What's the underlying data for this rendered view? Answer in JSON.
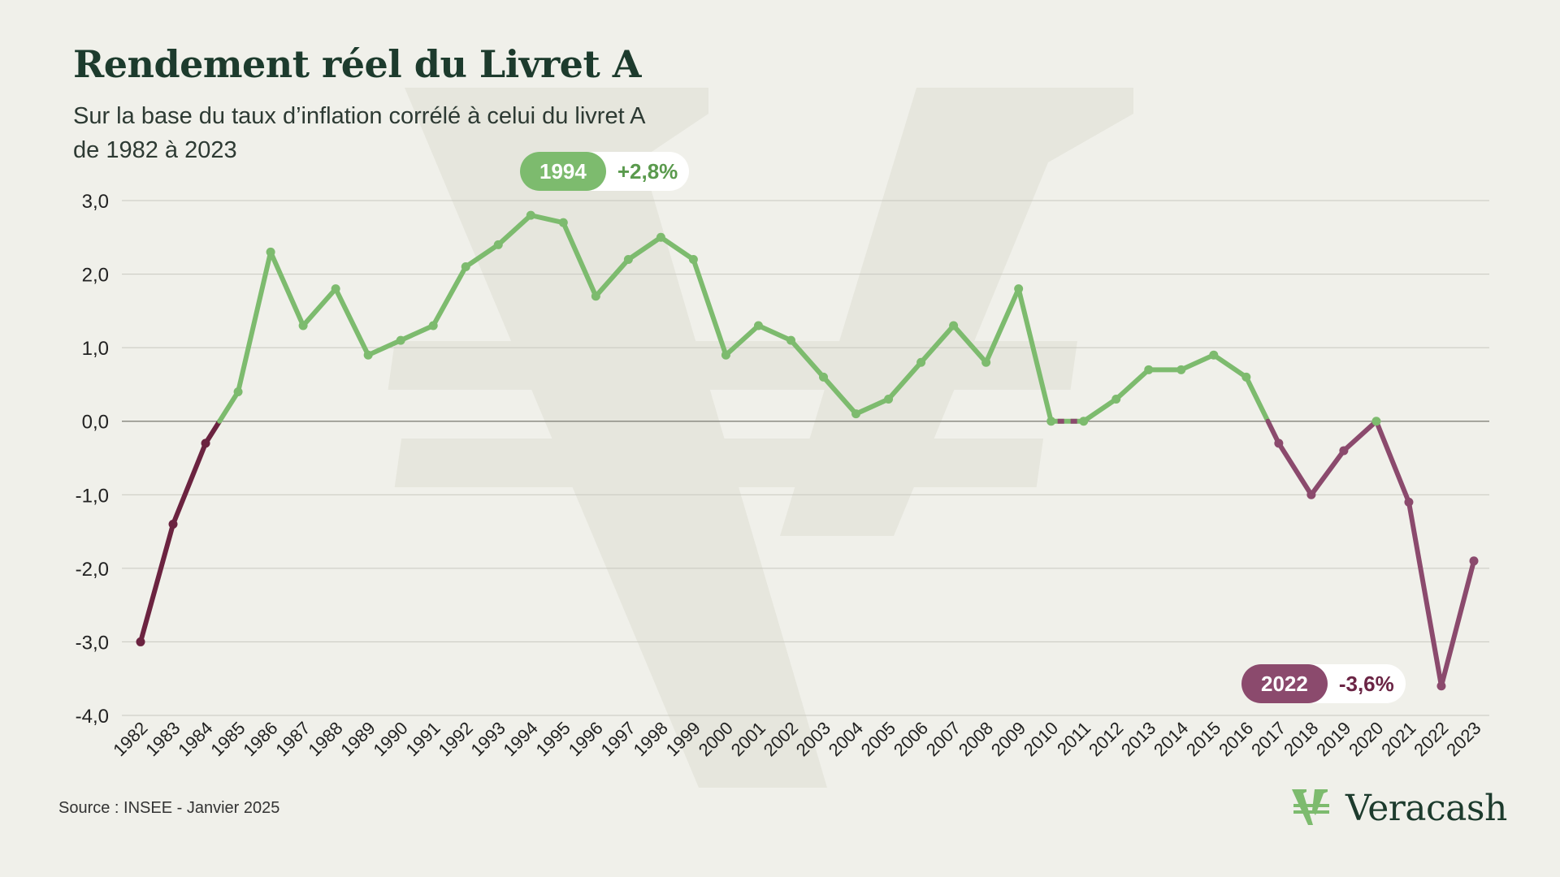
{
  "title": "Rendement réel du Livret A",
  "subtitle_line1": "Sur la base du taux d’inflation corrélé à celui du livret A",
  "subtitle_line2": "de 1982 à 2023",
  "source": "Source : INSEE - Janvier 2025",
  "brand": "Veracash",
  "callouts": {
    "max": {
      "year": "1994",
      "value": "+2,8%"
    },
    "min": {
      "year": "2022",
      "value": "-3,6%"
    }
  },
  "colors": {
    "positive": "#7dbb6e",
    "negative_early": "#6b2340",
    "negative_late": "#8b4a6d",
    "grid": "#c8c8c0",
    "background": "#f0f0ea"
  },
  "chart_data": {
    "type": "line",
    "title": "Rendement réel du Livret A",
    "ylim": [
      -4,
      3
    ],
    "yticks": [
      "3,0",
      "2,0",
      "1,0",
      "0,0",
      "-1,0",
      "-2,0",
      "-3,0",
      "-4,0"
    ],
    "grid": true,
    "x": [
      "1982",
      "1983",
      "1984",
      "1985",
      "1986",
      "1987",
      "1988",
      "1989",
      "1990",
      "1991",
      "1992",
      "1993",
      "1994",
      "1995",
      "1996",
      "1997",
      "1998",
      "1999",
      "2000",
      "2001",
      "2002",
      "2003",
      "2004",
      "2005",
      "2006",
      "2007",
      "2008",
      "2009",
      "2010",
      "2011",
      "2012",
      "2013",
      "2014",
      "2015",
      "2016",
      "2017",
      "2018",
      "2019",
      "2020",
      "2021",
      "2022",
      "2023"
    ],
    "values": [
      -3.0,
      -1.4,
      -0.3,
      0.4,
      2.3,
      1.3,
      1.8,
      0.9,
      1.1,
      1.3,
      2.1,
      2.4,
      2.8,
      2.7,
      1.7,
      2.2,
      2.5,
      2.2,
      0.9,
      1.3,
      1.1,
      0.6,
      0.1,
      0.3,
      0.8,
      1.3,
      0.8,
      1.8,
      0.0,
      0.0,
      0.3,
      0.7,
      0.7,
      0.9,
      0.6,
      -0.3,
      -1.0,
      -0.4,
      0.0,
      -1.1,
      -3.6,
      -1.9
    ]
  }
}
